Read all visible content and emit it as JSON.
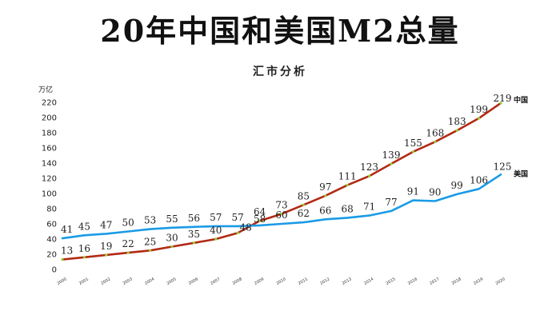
{
  "chart_data": {
    "type": "line",
    "title": "20年中国和美国M2总量",
    "subtitle": "汇市分析",
    "ylabel": "万亿",
    "xlabel": "",
    "ylim": [
      0,
      230
    ],
    "yticks": [
      0,
      20,
      40,
      60,
      80,
      100,
      120,
      140,
      160,
      180,
      200,
      220
    ],
    "grid": false,
    "legend": "labels at line ends",
    "x": [
      "2000",
      "2001",
      "2002",
      "2003",
      "2004",
      "2005",
      "2006",
      "2007",
      "2008",
      "2009",
      "2010",
      "2011",
      "2012",
      "2013",
      "2014",
      "2015",
      "2016",
      "2017",
      "2018",
      "2019",
      "2020"
    ],
    "series": [
      {
        "name": "中国",
        "color": "#b22a14",
        "marker_color": "#9acd32",
        "values": [
          13,
          16,
          19,
          22,
          25,
          30,
          35,
          40,
          48,
          64,
          73,
          85,
          97,
          111,
          123,
          139,
          155,
          168,
          183,
          199,
          219
        ],
        "labels": [
          "13",
          "16",
          "19",
          "22",
          "25",
          "30",
          "35",
          "40",
          "48",
          "64",
          "73",
          "85",
          "97",
          "111",
          "123",
          "139",
          "155",
          "168",
          "183",
          "199",
          "219"
        ]
      },
      {
        "name": "美国",
        "color": "#1a9be6",
        "values": [
          41,
          45,
          47,
          50,
          53,
          55,
          56,
          57,
          57,
          58,
          60,
          62,
          66,
          68,
          71,
          77,
          91,
          90,
          99,
          106,
          125
        ],
        "labels": [
          "41",
          "45",
          "47",
          "50",
          "53",
          "55",
          "56",
          "57",
          "57",
          "58",
          "60",
          "62",
          "66",
          "68",
          "71",
          "77",
          "91",
          "90",
          "99",
          "106",
          "125"
        ]
      }
    ]
  }
}
